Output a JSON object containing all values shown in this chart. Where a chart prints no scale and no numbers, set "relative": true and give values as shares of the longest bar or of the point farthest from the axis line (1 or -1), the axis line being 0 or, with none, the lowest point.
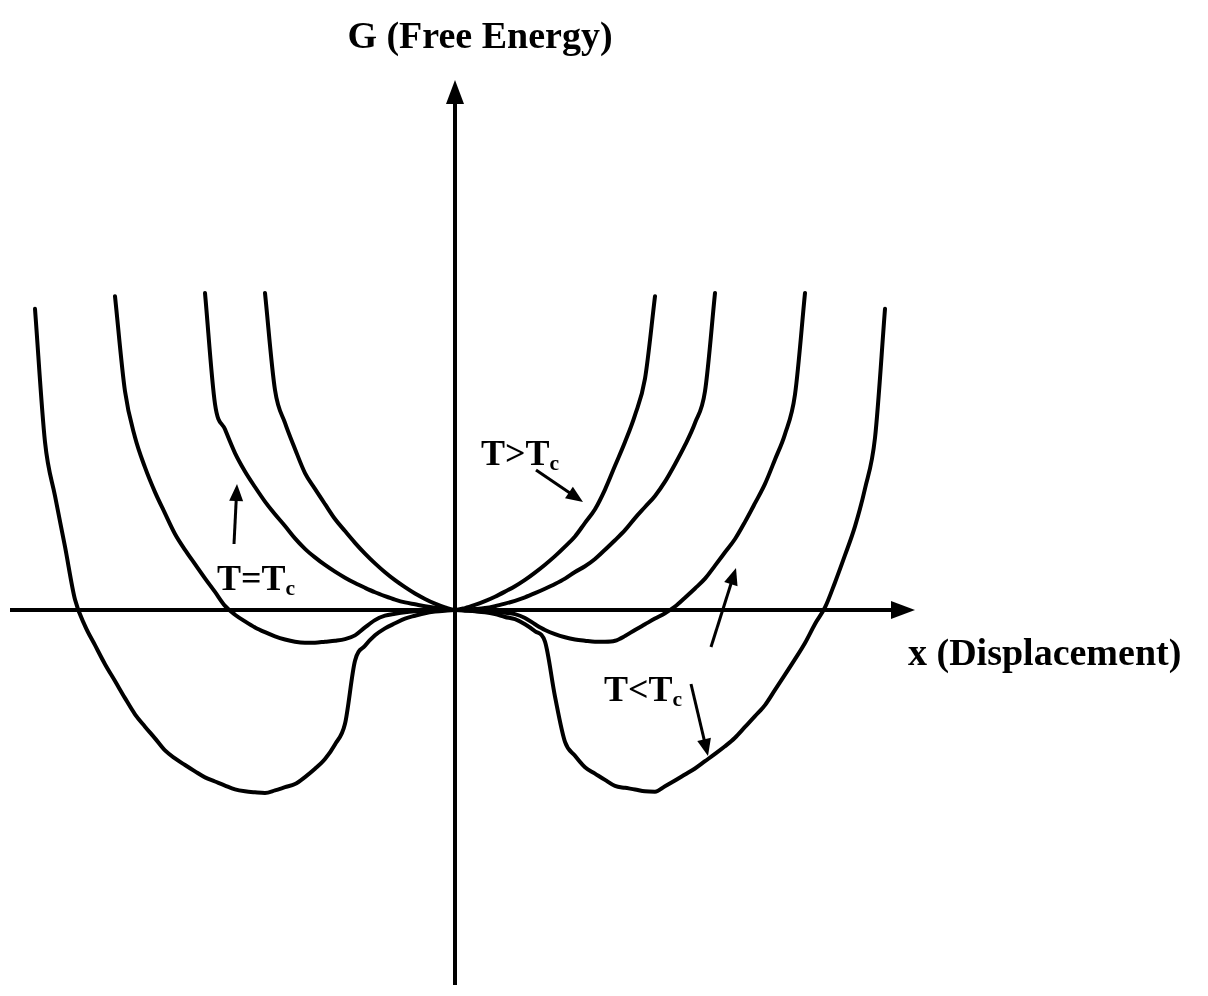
{
  "chart_data": {
    "type": "line",
    "relative": true,
    "xlabel": "x (Displacement)",
    "categories": [
      null,
      null,
      null,
      null,
      null,
      null,
      null,
      null,
      null,
      null,
      null,
      null,
      null,
      null,
      null,
      null,
      null,
      null,
      null,
      null,
      null,
      null,
      null,
      null,
      null,
      null,
      null,
      null,
      null,
      null,
      null,
      null,
      null,
      null,
      null,
      null,
      null,
      null,
      null,
      null,
      null,
      null,
      null,
      null,
      null,
      null,
      null,
      null,
      null,
      null,
      null,
      null,
      null,
      null,
      null,
      null,
      null,
      null,
      null,
      null,
      null,
      null,
      null,
      null,
      null,
      null,
      null,
      null,
      null,
      null,
      null,
      null,
      null,
      null,
      null,
      null,
      null,
      null,
      null,
      null,
      null,
      null,
      null,
      null,
      null,
      null,
      null
    ],
    "series": [
      {
        "color": "#000000",
        "values": [
          null,
          null,
          null,
          null,
          null,
          null,
          null,
          null,
          null,
          null,
          null,
          null,
          null,
          null,
          null,
          null,
          null,
          null,
          null,
          null,
          null,
          null,
          null,
          null,
          1,
          0.694,
          0.59,
          0.508,
          0.432,
          0.382,
          0.334,
          0.287,
          0.249,
          0.212,
          0.178,
          0.147,
          0.119,
          0.094,
          0.072,
          0.052,
          0.035,
          0.02,
          0.008,
          0,
          0.006,
          0.016,
          0.028,
          0.042,
          0.058,
          0.075,
          0.095,
          0.118,
          0.143,
          0.17,
          0.2,
          0.232,
          0.275,
          0.318,
          0.38,
          0.455,
          0.53,
          0.615,
          0.73,
          0.99,
          null,
          null,
          null,
          null,
          null,
          null,
          null,
          null,
          null,
          null,
          null,
          null,
          null,
          null,
          null,
          null,
          null,
          null,
          null,
          null,
          null,
          null,
          null
        ]
      },
      {
        "color": "#000000",
        "values": [
          null,
          null,
          null,
          null,
          null,
          null,
          null,
          null,
          null,
          null,
          null,
          null,
          null,
          null,
          null,
          null,
          null,
          null,
          1,
          0.65,
          0.57,
          0.495,
          0.437,
          0.388,
          0.342,
          0.302,
          0.265,
          0.226,
          0.193,
          0.166,
          0.142,
          0.121,
          0.102,
          0.085,
          0.07,
          0.056,
          0.044,
          0.033,
          0.024,
          0.018,
          0.012,
          0.007,
          0.003,
          0,
          0.001,
          0.003,
          0.006,
          0.012,
          0.02,
          0.029,
          0.04,
          0.053,
          0.067,
          0.082,
          0.099,
          0.12,
          0.138,
          0.161,
          0.19,
          0.22,
          0.252,
          0.29,
          0.325,
          0.36,
          0.405,
          0.46,
          0.52,
          0.59,
          0.69,
          1,
          null,
          null,
          null,
          null,
          null,
          null,
          null,
          null,
          null,
          null,
          null,
          null,
          null,
          null,
          null,
          null,
          null
        ]
      },
      {
        "color": "#000000",
        "values": [
          null,
          null,
          null,
          null,
          null,
          null,
          null,
          null,
          null,
          0.99,
          0.69,
          0.545,
          0.45,
          0.372,
          0.305,
          0.24,
          0.19,
          0.145,
          0.1,
          0.057,
          0.013,
          -0.015,
          -0.036,
          -0.055,
          -0.07,
          -0.083,
          -0.093,
          -0.1,
          -0.103,
          -0.103,
          -0.1,
          -0.097,
          -0.092,
          -0.08,
          -0.055,
          -0.032,
          -0.018,
          -0.012,
          -0.007,
          -0.004,
          -0.002,
          -0.001,
          0,
          0,
          -0.001,
          -0.003,
          -0.005,
          -0.007,
          -0.009,
          -0.013,
          -0.025,
          -0.045,
          -0.063,
          -0.076,
          -0.086,
          -0.093,
          -0.097,
          -0.1,
          -0.1,
          -0.097,
          -0.082,
          -0.063,
          -0.045,
          -0.027,
          -0.01,
          0.011,
          0.039,
          0.068,
          0.099,
          0.14,
          0.182,
          0.224,
          0.278,
          0.337,
          0.398,
          0.475,
          0.555,
          0.68,
          1,
          null,
          null,
          null,
          null,
          null,
          null,
          null,
          null
        ]
      },
      {
        "color": "#000000",
        "values": [
          null,
          0.95,
          0.53,
          0.36,
          0.2,
          0.033,
          -0.05,
          -0.111,
          -0.171,
          -0.224,
          -0.278,
          -0.329,
          -0.368,
          -0.405,
          -0.443,
          -0.468,
          -0.489,
          -0.509,
          -0.528,
          -0.541,
          -0.554,
          -0.566,
          -0.572,
          -0.575,
          -0.577,
          -0.569,
          -0.559,
          -0.549,
          -0.527,
          -0.501,
          -0.47,
          -0.424,
          -0.359,
          -0.16,
          -0.113,
          -0.08,
          -0.058,
          -0.042,
          -0.027,
          -0.018,
          -0.01,
          -0.005,
          -0.002,
          0,
          -0.002,
          -0.004,
          -0.007,
          -0.013,
          -0.022,
          -0.029,
          -0.045,
          -0.067,
          -0.1,
          -0.273,
          -0.416,
          -0.46,
          -0.496,
          -0.516,
          -0.536,
          -0.555,
          -0.561,
          -0.566,
          -0.572,
          -0.573,
          -0.556,
          -0.538,
          -0.519,
          -0.5,
          -0.477,
          -0.454,
          -0.43,
          -0.403,
          -0.369,
          -0.335,
          -0.3,
          -0.252,
          -0.204,
          -0.155,
          -0.104,
          -0.044,
          0.008,
          0.087,
          0.173,
          0.264,
          0.383,
          0.543,
          0.95
        ]
      }
    ],
    "annotations": [
      "G (Free Energy)",
      "T>T$_{c}$",
      "T=T$_{c}$",
      "T<T$_{c}$"
    ],
    "tick_labels": false,
    "grid": false,
    "legend": false,
    "marker": "none",
    "line_style": "solid"
  }
}
